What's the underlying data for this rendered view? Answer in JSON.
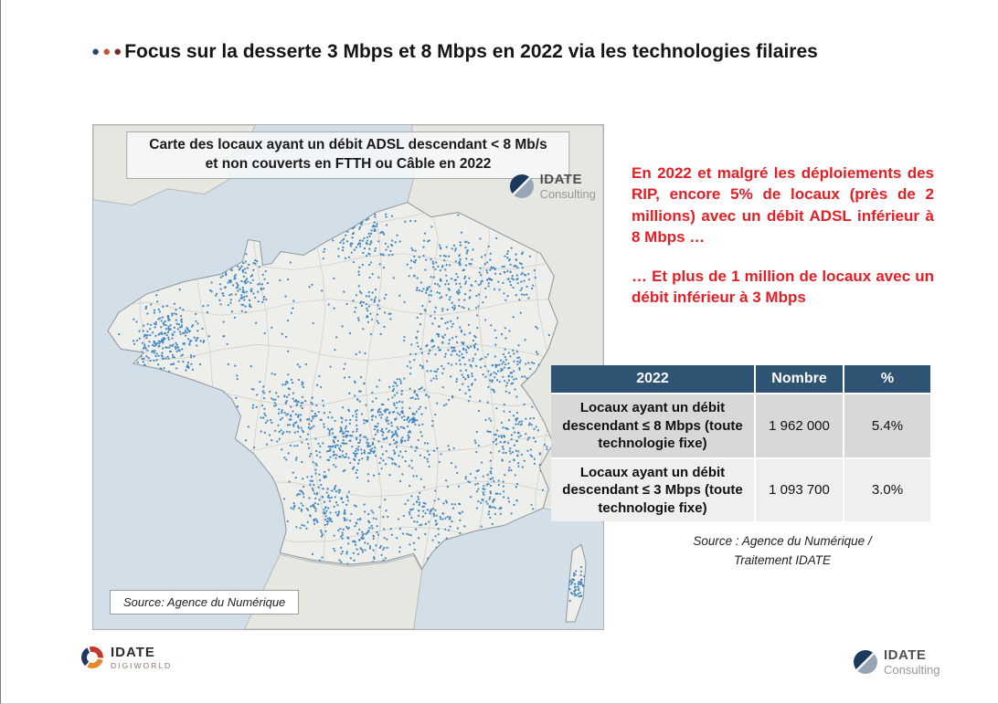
{
  "slide": {
    "title": "Focus sur la desserte 3 Mbps et 8 Mbps en 2022 via les technologies filaires",
    "bullet_colors": [
      "#24456e",
      "#c2543a",
      "#6f2b27"
    ]
  },
  "map": {
    "title_line1": "Carte des locaux ayant un débit ADSL descendant < 8 Mb/s",
    "title_line2": "et non couverts en FTTH ou Câble en 2022",
    "source": "Source: Agence du Numérique",
    "logo_name": "IDATE",
    "logo_sub": "Consulting",
    "dot_color": "#2e7bbd",
    "sea_color": "#d3dfe8",
    "land_color": "#eeeeea"
  },
  "callouts": [
    "En 2022 et malgré les déploiements des RIP, encore 5% de locaux (près de 2 millions) avec un débit ADSL inférieur à 8 Mbps …",
    "… Et plus de 1 million de locaux avec un débit inférieur à 3 Mbps"
  ],
  "callout_color": "#e31e24",
  "table": {
    "header_bg": "#2e5373",
    "header": [
      "2022",
      "Nombre",
      "%"
    ],
    "rows": [
      {
        "label": "Locaux ayant un débit descendant ≤ 8 Mbps (toute technologie fixe)",
        "nombre": "1 962 000",
        "pct": "5.4%"
      },
      {
        "label": "Locaux ayant un débit descendant ≤ 3 Mbps (toute technologie fixe)",
        "nombre": "1 093 700",
        "pct": "3.0%"
      }
    ],
    "source_line1": "Source : Agence du Numérique /",
    "source_line2": "Traitement IDATE"
  },
  "footer": {
    "left_name": "IDATE",
    "left_sub": "DIGIWORLD",
    "right_name": "IDATE",
    "right_sub": "Consulting"
  }
}
